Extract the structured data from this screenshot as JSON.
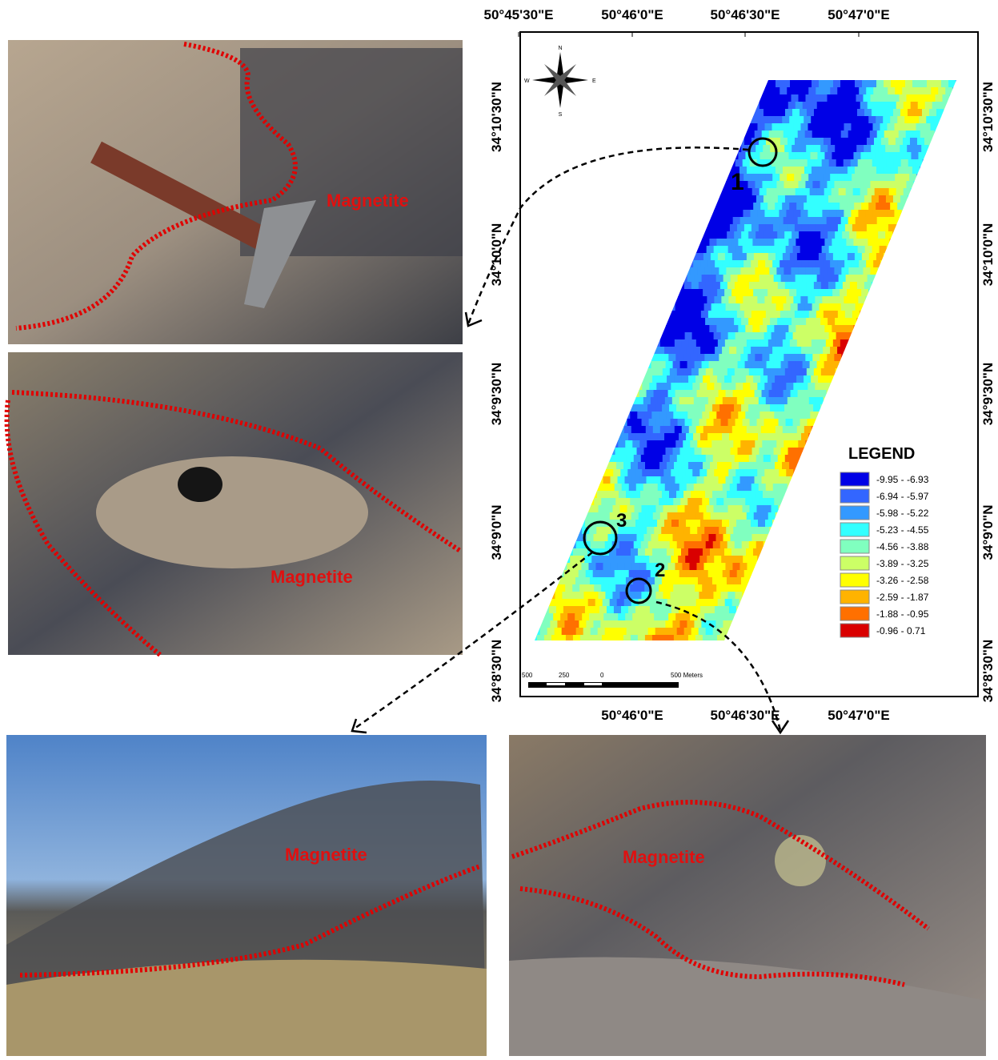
{
  "map": {
    "top_longitudes": [
      "50°45'30\"E",
      "50°46'0\"E",
      "50°46'30\"E",
      "50°47'0\"E"
    ],
    "bottom_longitudes": [
      "50°46'0\"E",
      "50°46'30\"E",
      "50°47'0\"E"
    ],
    "left_latitudes": [
      "34°10'30\"N",
      "34°10'0\"N",
      "34°9'30\"N",
      "34°9'0\"N",
      "34°8'30\"N"
    ],
    "right_latitudes": [
      "34°10'30\"N",
      "34°10'0\"N",
      "34°9'30\"N",
      "34°9'0\"N",
      "34°8'30\"N"
    ],
    "compass": {
      "n": "N",
      "s": "S",
      "e": "E",
      "w": "W"
    },
    "legend": {
      "title": "LEGEND",
      "items": [
        {
          "label": "-9.95 - -6.93",
          "color": "#0000e6"
        },
        {
          "label": "-6.94 - -5.97",
          "color": "#3366ff"
        },
        {
          "label": "-5.98 - -5.22",
          "color": "#3399ff"
        },
        {
          "label": "-5.23 - -4.55",
          "color": "#33ffff"
        },
        {
          "label": "-4.56 - -3.88",
          "color": "#80ffbf"
        },
        {
          "label": "-3.89 - -3.25",
          "color": "#ccff66"
        },
        {
          "label": "-3.26 - -2.58",
          "color": "#ffff00"
        },
        {
          "label": "-2.59 - -1.87",
          "color": "#ffb300"
        },
        {
          "label": "-1.88 - -0.95",
          "color": "#ff7000"
        },
        {
          "label": "-0.96 - 0.71",
          "color": "#d90000"
        }
      ]
    },
    "scale_bar": {
      "labels": [
        "500",
        "250",
        "0",
        "500 Meters"
      ]
    },
    "sites": [
      "1",
      "2",
      "3"
    ]
  },
  "photos": [
    {
      "label": "Magnetite"
    },
    {
      "label": "Magnetite"
    },
    {
      "label": "Magnetite"
    },
    {
      "label": "Magnetite"
    }
  ]
}
